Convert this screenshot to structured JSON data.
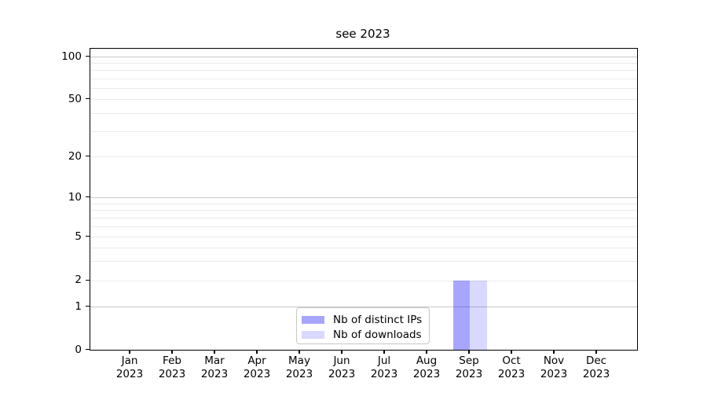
{
  "title": "see 2023",
  "chart_data": {
    "type": "bar",
    "title": "see 2023",
    "categories": [
      "Jan\n2023",
      "Feb\n2023",
      "Mar\n2023",
      "Apr\n2023",
      "May\n2023",
      "Jun\n2023",
      "Jul\n2023",
      "Aug\n2023",
      "Sep\n2023",
      "Oct\n2023",
      "Nov\n2023",
      "Dec\n2023"
    ],
    "series": [
      {
        "name": "Nb of distinct IPs",
        "color": "#0000ff",
        "alpha": 0.35,
        "values": [
          0,
          0,
          0,
          0,
          0,
          0,
          0,
          0,
          2,
          0,
          0,
          0
        ]
      },
      {
        "name": "Nb of downloads",
        "color": "#0000ff",
        "alpha": 0.15,
        "values": [
          0,
          0,
          0,
          0,
          0,
          0,
          0,
          0,
          2,
          0,
          0,
          0
        ]
      }
    ],
    "xlabel": "",
    "ylabel": "",
    "yscale": "symlog-like",
    "ylim": [
      0,
      115
    ],
    "ytick_values": [
      100,
      50,
      20,
      10,
      5,
      2,
      1,
      0
    ],
    "ytick_labels": [
      "100",
      "50",
      "20",
      "10",
      "5",
      "2",
      "1",
      "0"
    ],
    "major_grid_values": [
      1,
      10,
      100
    ],
    "minor_grid_values": [
      2,
      3,
      4,
      5,
      6,
      7,
      8,
      9,
      20,
      30,
      40,
      50,
      60,
      70,
      80,
      90
    ],
    "grid": "on",
    "legend_position": "lower center"
  }
}
